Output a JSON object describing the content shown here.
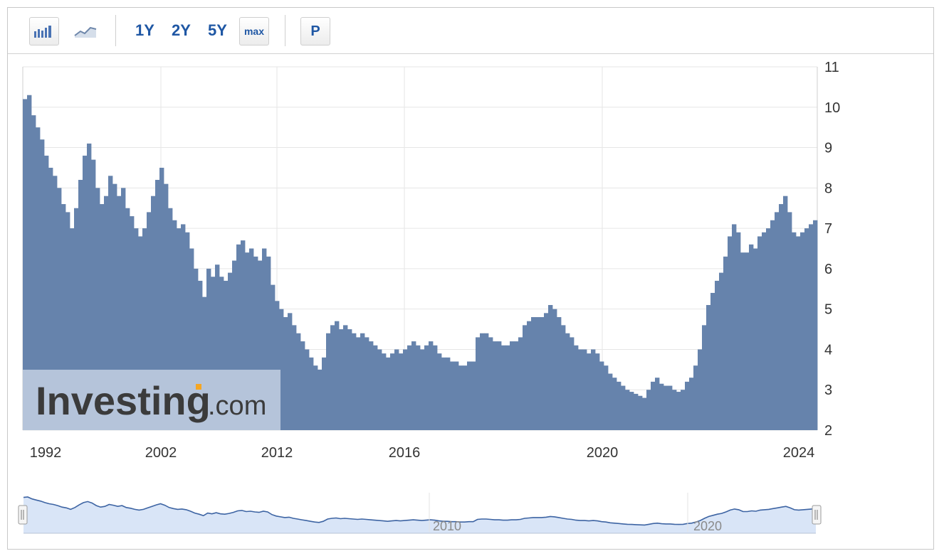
{
  "toolbar": {
    "icons": [
      "bar-chart-icon",
      "line-chart-icon"
    ],
    "ranges": [
      "1Y",
      "2Y",
      "5Y"
    ],
    "max_label": "max",
    "p_label": "P"
  },
  "colors": {
    "fill": "#6683ac",
    "grid": "#e6e6e6",
    "nav_fill": "#d9e5f7",
    "nav_line": "#3d64a3",
    "axis_text": "#333333",
    "toolbar_text": "#1f57a4"
  },
  "watermark": {
    "brand": "Investing",
    "suffix": ".com"
  },
  "chart_data": {
    "type": "area",
    "title": "",
    "xlabel": "",
    "ylabel": "",
    "ylim": [
      2,
      11
    ],
    "yticks": [
      "2",
      "3",
      "4",
      "5",
      "6",
      "7",
      "8",
      "9",
      "10",
      "11"
    ],
    "xticks": [
      "1992",
      "2002",
      "2012",
      "2016",
      "2020",
      "2024"
    ],
    "grid": true,
    "series": [
      {
        "values": [
          10.2,
          10.3,
          9.8,
          9.5,
          9.2,
          8.8,
          8.5,
          8.3,
          8.0,
          7.6,
          7.4,
          7.0,
          7.5,
          8.2,
          8.8,
          9.1,
          8.7,
          8.0,
          7.6,
          7.8,
          8.3,
          8.1,
          7.8,
          8.0,
          7.5,
          7.3,
          7.0,
          6.8,
          7.0,
          7.4,
          7.8,
          8.2,
          8.5,
          8.1,
          7.5,
          7.2,
          7.0,
          7.1,
          6.9,
          6.5,
          6.0,
          5.7,
          5.3,
          6.0,
          5.8,
          6.1,
          5.8,
          5.7,
          5.9,
          6.2,
          6.6,
          6.7,
          6.4,
          6.5,
          6.3,
          6.2,
          6.5,
          6.3,
          5.6,
          5.2,
          5.0,
          4.8,
          4.9,
          4.6,
          4.4,
          4.2,
          4.0,
          3.8,
          3.6,
          3.5,
          3.8,
          4.4,
          4.6,
          4.7,
          4.5,
          4.6,
          4.5,
          4.4,
          4.3,
          4.4,
          4.3,
          4.2,
          4.1,
          4.0,
          3.9,
          3.8,
          3.9,
          4.0,
          3.9,
          4.0,
          4.1,
          4.2,
          4.1,
          4.0,
          4.1,
          4.2,
          4.1,
          3.9,
          3.8,
          3.8,
          3.7,
          3.7,
          3.6,
          3.6,
          3.7,
          3.7,
          4.3,
          4.4,
          4.4,
          4.3,
          4.2,
          4.2,
          4.1,
          4.1,
          4.2,
          4.2,
          4.3,
          4.6,
          4.7,
          4.8,
          4.8,
          4.8,
          4.9,
          5.1,
          5.0,
          4.8,
          4.6,
          4.4,
          4.3,
          4.1,
          4.0,
          4.0,
          3.9,
          4.0,
          3.9,
          3.7,
          3.6,
          3.4,
          3.3,
          3.2,
          3.1,
          3.0,
          2.95,
          2.9,
          2.85,
          2.8,
          3.0,
          3.2,
          3.3,
          3.15,
          3.1,
          3.1,
          3.0,
          2.95,
          3.0,
          3.2,
          3.3,
          3.6,
          4.0,
          4.6,
          5.1,
          5.4,
          5.7,
          5.9,
          6.3,
          6.8,
          7.1,
          6.9,
          6.4,
          6.4,
          6.6,
          6.5,
          6.8,
          6.9,
          7.0,
          7.2,
          7.4,
          7.6,
          7.8,
          7.4,
          6.9,
          6.8,
          6.9,
          7.0,
          7.1,
          7.2
        ]
      }
    ]
  },
  "navigator": {
    "labels": [
      "2010",
      "2020"
    ]
  }
}
